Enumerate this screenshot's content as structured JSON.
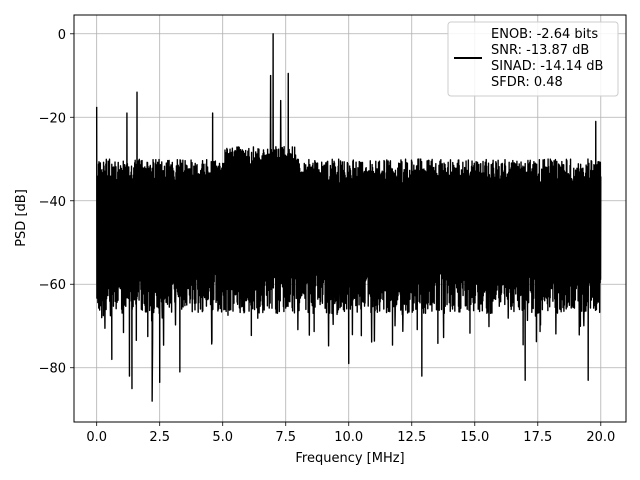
{
  "chart_data": {
    "type": "line",
    "xlabel": "Frequency [MHz]",
    "ylabel": "PSD [dB]",
    "xlim": [
      -0.9,
      21.0
    ],
    "ylim": [
      -93,
      4.5
    ],
    "xticks": [
      0.0,
      2.5,
      5.0,
      7.5,
      10.0,
      12.5,
      15.0,
      17.5,
      20.0
    ],
    "xtick_labels": [
      "0.0",
      "2.5",
      "5.0",
      "7.5",
      "10.0",
      "12.5",
      "15.0",
      "17.5",
      "20.0"
    ],
    "yticks": [
      0,
      -20,
      -40,
      -60,
      -80
    ],
    "ytick_labels": [
      "0",
      "−20",
      "−40",
      "−60",
      "−80"
    ],
    "grid": true,
    "legend_position": "top-right",
    "line_color": "#000000",
    "noise_band": {
      "x_range": [
        0.0,
        20.0
      ],
      "typical_upper_db": -30,
      "typical_lower_db": -65
    },
    "peaks": [
      {
        "x": 0.0,
        "y": -17.5
      },
      {
        "x": 1.2,
        "y": -19
      },
      {
        "x": 1.6,
        "y": -14
      },
      {
        "x": 4.6,
        "y": -19
      },
      {
        "x": 6.9,
        "y": -10
      },
      {
        "x": 7.0,
        "y": 0
      },
      {
        "x": 7.3,
        "y": -16
      },
      {
        "x": 7.6,
        "y": -9.5
      },
      {
        "x": 19.8,
        "y": -21
      }
    ],
    "troughs": [
      {
        "x": 0.2,
        "y": -68
      },
      {
        "x": 0.6,
        "y": -78
      },
      {
        "x": 1.3,
        "y": -82
      },
      {
        "x": 1.4,
        "y": -85
      },
      {
        "x": 2.2,
        "y": -88
      },
      {
        "x": 2.5,
        "y": -83.5
      },
      {
        "x": 3.3,
        "y": -81
      },
      {
        "x": 10.0,
        "y": -79
      },
      {
        "x": 12.9,
        "y": -82
      },
      {
        "x": 17.0,
        "y": -83
      },
      {
        "x": 19.5,
        "y": -83
      }
    ],
    "legend": {
      "lines": [
        "ENOB: -2.64 bits",
        "SNR: -13.87 dB",
        "SINAD: -14.14 dB",
        "SFDR: 0.48"
      ]
    }
  }
}
